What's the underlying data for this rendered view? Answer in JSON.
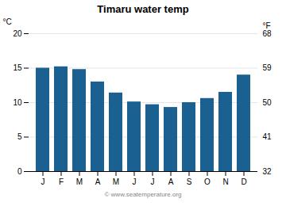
{
  "chart_data": {
    "type": "bar",
    "title": "Timaru water temp",
    "categories": [
      "J",
      "F",
      "M",
      "A",
      "M",
      "J",
      "J",
      "A",
      "S",
      "O",
      "N",
      "D"
    ],
    "values": [
      15.0,
      15.2,
      14.8,
      13.0,
      11.4,
      10.1,
      9.7,
      9.3,
      10.0,
      10.6,
      11.5,
      14.0
    ],
    "color": "#1a6090",
    "ylabel": "°C",
    "ylim": [
      0,
      20
    ],
    "yticks": [
      0,
      5,
      10,
      15,
      20
    ],
    "y2label": "°F",
    "y2lim": [
      32,
      68
    ],
    "y2ticks": [
      32,
      41,
      50,
      59,
      68
    ],
    "grid": true,
    "caption": "© www.seatemperature.org"
  }
}
